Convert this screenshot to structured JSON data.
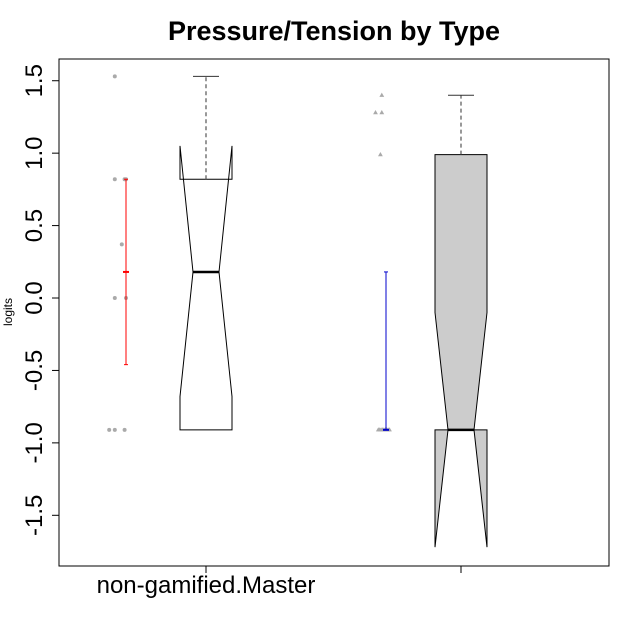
{
  "chart_data": {
    "type": "boxplot",
    "title": "Pressure/Tension by Type",
    "xlabel": "",
    "ylabel": "logits",
    "ylim": [
      -1.85,
      1.65
    ],
    "y_ticks": [
      1.5,
      1.0,
      0.5,
      0.0,
      -0.5,
      -1.0,
      -1.5
    ],
    "y_tick_labels": [
      "1.5",
      "1.0",
      "0.5",
      "0.0",
      "-0.5",
      "-1.0",
      "-1.5"
    ],
    "x_tick_labels": [
      "non-gamified.Master",
      ""
    ],
    "grid": false,
    "legend": "none",
    "groups": [
      {
        "box": {
          "q1": -0.91,
          "median": 0.18,
          "q3": 0.82,
          "whisker_low": -0.91,
          "whisker_high": 1.53,
          "notch_low": -0.68,
          "notch_high": 1.05
        },
        "fill": "#ffffff",
        "points": [
          {
            "x": -0.8,
            "y": 1.53
          },
          {
            "x": -0.8,
            "y": 0.82
          },
          {
            "x": -0.1,
            "y": 0.82
          },
          {
            "x": 0.0,
            "y": 0.82
          },
          {
            "x": -0.3,
            "y": 0.37
          },
          {
            "x": -0.8,
            "y": 0.0
          },
          {
            "x": 0.0,
            "y": 0.0
          },
          {
            "x": -1.2,
            "y": -0.91
          },
          {
            "x": -0.8,
            "y": -0.91
          },
          {
            "x": -0.1,
            "y": -0.91
          }
        ],
        "point_shape": "circle",
        "point_color": "#aaaaaa",
        "interval": {
          "center": 0.18,
          "low": -0.46,
          "high": 0.82,
          "color": "#ff0000"
        }
      },
      {
        "box": {
          "q1": -0.91,
          "median": -0.91,
          "q3": 0.99,
          "whisker_low": -0.91,
          "whisker_high": 1.4,
          "notch_low": -1.72,
          "notch_high": -0.1
        },
        "fill": "#cccccc",
        "points": [
          {
            "x": -0.3,
            "y": 1.4
          },
          {
            "x": -0.75,
            "y": 1.28
          },
          {
            "x": -0.3,
            "y": 1.28
          },
          {
            "x": -0.4,
            "y": 0.99
          },
          {
            "x": -0.55,
            "y": -0.91
          },
          {
            "x": -0.45,
            "y": -0.91
          },
          {
            "x": -0.35,
            "y": -0.91
          },
          {
            "x": -0.25,
            "y": -0.91
          },
          {
            "x": -0.15,
            "y": -0.91
          },
          {
            "x": -0.05,
            "y": -0.91
          },
          {
            "x": 0.05,
            "y": -0.91
          },
          {
            "x": 0.15,
            "y": -0.91
          },
          {
            "x": 0.25,
            "y": -0.91
          }
        ],
        "point_shape": "triangle",
        "point_color": "#aaaaaa",
        "interval": {
          "center": -0.91,
          "low": -0.91,
          "high": 0.18,
          "color": "#0000cc"
        }
      }
    ]
  }
}
